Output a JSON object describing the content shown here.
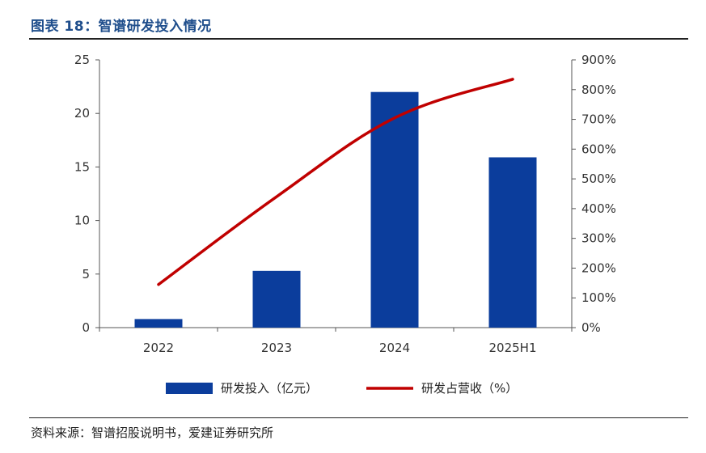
{
  "header": {
    "title": "图表 18：智谱研发投入情况"
  },
  "footer": {
    "source": "资料来源：智谱招股说明书，爱建证券研究所"
  },
  "colors": {
    "bar": "#0b3d9c",
    "line": "#c00000",
    "axis": "#555555",
    "title": "#1f4e8c"
  },
  "chart_data": {
    "type": "bar+line",
    "categories": [
      "2022",
      "2023",
      "2024",
      "2025H1"
    ],
    "series": [
      {
        "name": "研发投入（亿元）",
        "type": "bar",
        "axis": "left",
        "values": [
          0.8,
          5.3,
          22.0,
          15.9
        ]
      },
      {
        "name": "研发占营收（%）",
        "type": "line",
        "axis": "right",
        "values": [
          145,
          440,
          705,
          835
        ]
      }
    ],
    "y_left": {
      "range": [
        0,
        25
      ],
      "ticks": [
        "0",
        "5",
        "10",
        "15",
        "20",
        "25"
      ]
    },
    "y_right": {
      "range": [
        0,
        900
      ],
      "ticks": [
        "0%",
        "100%",
        "200%",
        "300%",
        "400%",
        "500%",
        "600%",
        "700%",
        "800%",
        "900%"
      ]
    },
    "legend": {
      "position": "bottom",
      "items": [
        "研发投入（亿元）",
        "研发占营收（%）"
      ]
    }
  }
}
